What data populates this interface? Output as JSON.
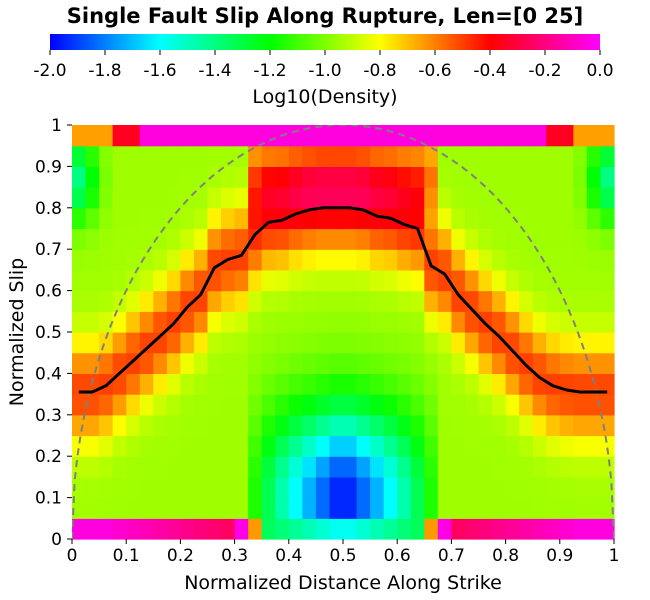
{
  "chart_data": {
    "type": "heatmap",
    "title": "Single Fault Slip Along Rupture, Len=[0 25]",
    "xlabel": "Normalized Distance Along Strike",
    "ylabel": "Normalized Slip",
    "xlim": [
      0,
      1
    ],
    "ylim": [
      0,
      1
    ],
    "x_ticks": [
      "0",
      "0.1",
      "0.2",
      "0.3",
      "0.4",
      "0.5",
      "0.6",
      "0.7",
      "0.8",
      "0.9",
      "1"
    ],
    "y_ticks": [
      "0",
      "0.1",
      "0.2",
      "0.3",
      "0.4",
      "0.5",
      "0.6",
      "0.7",
      "0.8",
      "0.9",
      "1"
    ],
    "colorbar": {
      "label": "Log10(Density)",
      "range": [
        -2.0,
        0.0
      ],
      "ticks": [
        "-2.0",
        "-1.8",
        "-1.6",
        "-1.4",
        "-1.2",
        "-1.0",
        "-0.8",
        "-0.6",
        "-0.4",
        "-0.2",
        "0.0"
      ],
      "colormap": [
        "#0000ff",
        "#00ffff",
        "#00ff00",
        "#ffff00",
        "#ff0000",
        "#ff00ff"
      ]
    },
    "grid": {
      "x_bins": 40,
      "y_bins": 20
    },
    "grid_lines": false,
    "mean_slip_curve": {
      "color": "#000000",
      "style": "solid",
      "x": [
        0.0125,
        0.0375,
        0.0625,
        0.0875,
        0.1125,
        0.1375,
        0.1625,
        0.1875,
        0.2125,
        0.2375,
        0.2625,
        0.2875,
        0.3125,
        0.3375,
        0.3625,
        0.3875,
        0.4125,
        0.4375,
        0.4625,
        0.4875,
        0.5125,
        0.5375,
        0.5625,
        0.5875,
        0.6125,
        0.6375,
        0.6625,
        0.6875,
        0.7125,
        0.7375,
        0.7625,
        0.7875,
        0.8125,
        0.8375,
        0.8625,
        0.8875,
        0.9125,
        0.9375,
        0.9625,
        0.9875
      ],
      "y": [
        0.355,
        0.355,
        0.37,
        0.4,
        0.43,
        0.46,
        0.49,
        0.52,
        0.56,
        0.59,
        0.655,
        0.675,
        0.685,
        0.735,
        0.765,
        0.77,
        0.785,
        0.795,
        0.8,
        0.8,
        0.8,
        0.795,
        0.78,
        0.775,
        0.76,
        0.75,
        0.66,
        0.64,
        0.59,
        0.555,
        0.52,
        0.49,
        0.455,
        0.42,
        0.39,
        0.37,
        0.36,
        0.355,
        0.355,
        0.355
      ]
    },
    "elliptical_reference": {
      "color": "#808080",
      "style": "dashed",
      "equation": "y = sqrt(1 - (2x - 1)^2)"
    },
    "density_model": {
      "description_free": true,
      "edge_band_value": 0.0,
      "center_trough_value": -2.0
    }
  }
}
